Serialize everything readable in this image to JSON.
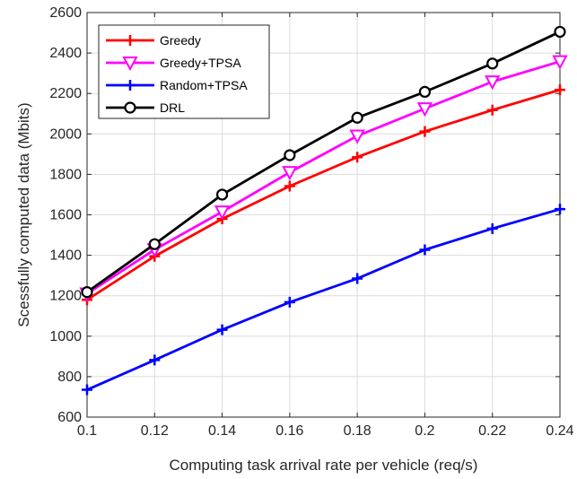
{
  "chart_data": {
    "type": "line",
    "xlabel": "Computing task arrival rate per vehicle (req/s)",
    "ylabel": "Scessfully computed data (Mbits)",
    "xlim": [
      0.1,
      0.24
    ],
    "ylim": [
      600,
      2600
    ],
    "x_ticks": [
      "0.1",
      "0.12",
      "0.14",
      "0.16",
      "0.18",
      "0.2",
      "0.22",
      "0.24"
    ],
    "y_ticks": [
      "600",
      "800",
      "1000",
      "1200",
      "1400",
      "1600",
      "1800",
      "2000",
      "2200",
      "2400",
      "2600"
    ],
    "x": [
      0.1,
      0.12,
      0.14,
      0.16,
      0.18,
      0.2,
      0.22,
      0.24
    ],
    "grid": true,
    "legend_position": "top-left",
    "series": [
      {
        "name": "Greedy",
        "color": "#ff0000",
        "marker": "plus",
        "values": [
          1180,
          1395,
          1580,
          1742,
          1885,
          2012,
          2118,
          2218
        ]
      },
      {
        "name": "Greedy+TPSA",
        "color": "#ff00ff",
        "marker": "triangle-down",
        "values": [
          1210,
          1428,
          1615,
          1810,
          1990,
          2125,
          2258,
          2358
        ]
      },
      {
        "name": "Random+TPSA",
        "color": "#0000ff",
        "marker": "plus",
        "values": [
          735,
          882,
          1032,
          1168,
          1285,
          1427,
          1532,
          1628
        ]
      },
      {
        "name": "DRL",
        "color": "#000000",
        "marker": "circle",
        "values": [
          1218,
          1455,
          1700,
          1895,
          2080,
          2208,
          2348,
          2505
        ]
      }
    ]
  }
}
